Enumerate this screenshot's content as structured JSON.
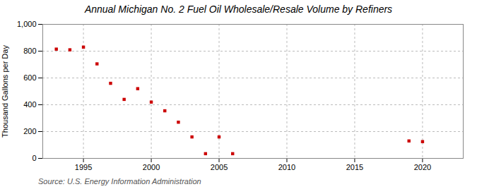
{
  "chart_data": {
    "type": "scatter",
    "title": "Annual Michigan No. 2 Fuel Oil Wholesale/Resale Volume by Refiners",
    "ylabel": "Thousand Gallons per Day",
    "source": "Source: U.S. Energy Information Administration",
    "x": [
      1993,
      1994,
      1995,
      1996,
      1997,
      1998,
      1999,
      2000,
      2001,
      2002,
      2003,
      2004,
      2005,
      2006,
      2019,
      2020
    ],
    "values": [
      815,
      810,
      830,
      705,
      560,
      440,
      520,
      420,
      355,
      270,
      160,
      35,
      160,
      35,
      130,
      125
    ],
    "color": "#cc0000",
    "marker": "square",
    "xlim": [
      1992,
      2023
    ],
    "xticks": [
      1995,
      2000,
      2005,
      2010,
      2015,
      2020
    ],
    "ylim": [
      0,
      1000
    ],
    "yticks": [
      0,
      200,
      400,
      600,
      800,
      {
        "value": 1000,
        "label": "1,000"
      }
    ],
    "grid": true
  }
}
